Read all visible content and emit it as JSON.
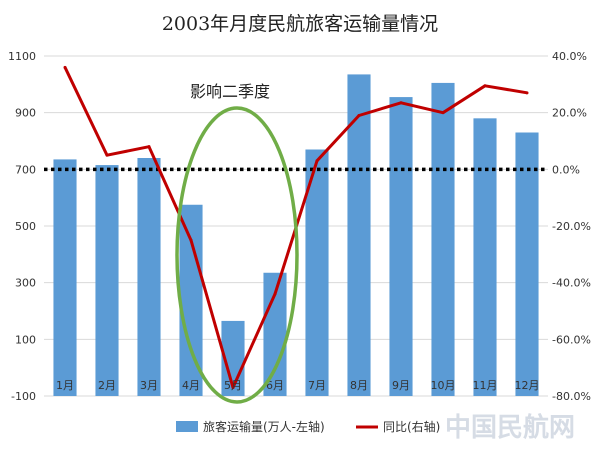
{
  "chart_data": {
    "type": "bar+line",
    "title": "2003年月度民航旅客运输量情况",
    "categories": [
      "1月",
      "2月",
      "3月",
      "4月",
      "5月",
      "6月",
      "7月",
      "8月",
      "9月",
      "10月",
      "11月",
      "12月"
    ],
    "series": [
      {
        "name": "旅客运输量(万人-左轴)",
        "type": "bar",
        "axis": "left",
        "color": "#5b9bd5",
        "values": [
          735,
          715,
          740,
          575,
          165,
          335,
          770,
          1035,
          955,
          1005,
          880,
          830
        ]
      },
      {
        "name": "同比(右轴)",
        "type": "line",
        "axis": "right",
        "color": "#c00000",
        "values": [
          36.0,
          5.0,
          8.0,
          -25.0,
          -77.0,
          -44.0,
          3.0,
          19.0,
          23.5,
          20.0,
          29.5,
          27.0
        ]
      }
    ],
    "y_left": {
      "ylim": [
        -100,
        1100
      ],
      "ticks": [
        -100,
        100,
        300,
        500,
        700,
        900,
        1100
      ],
      "tick_labels": [
        "-100",
        "100",
        "300",
        "500",
        "700",
        "900",
        "1100"
      ]
    },
    "y_right": {
      "ylim": [
        -80,
        40
      ],
      "ticks": [
        -80,
        -60,
        -40,
        -20,
        0,
        20,
        40
      ],
      "tick_labels": [
        "-80.0%",
        "-60.0%",
        "-40.0%",
        "-20.0%",
        "0.0%",
        "20.0%",
        "40.0%"
      ]
    },
    "reference_line": {
      "axis": "right",
      "value": 0,
      "style": "dotted",
      "color": "#000000"
    },
    "annotation": {
      "text": "影响二季度",
      "target_categories": [
        "4月",
        "5月",
        "6月"
      ],
      "color": "#70ad47"
    },
    "legend": {
      "position": "bottom"
    },
    "grid": true,
    "watermark": "中国民航网"
  }
}
